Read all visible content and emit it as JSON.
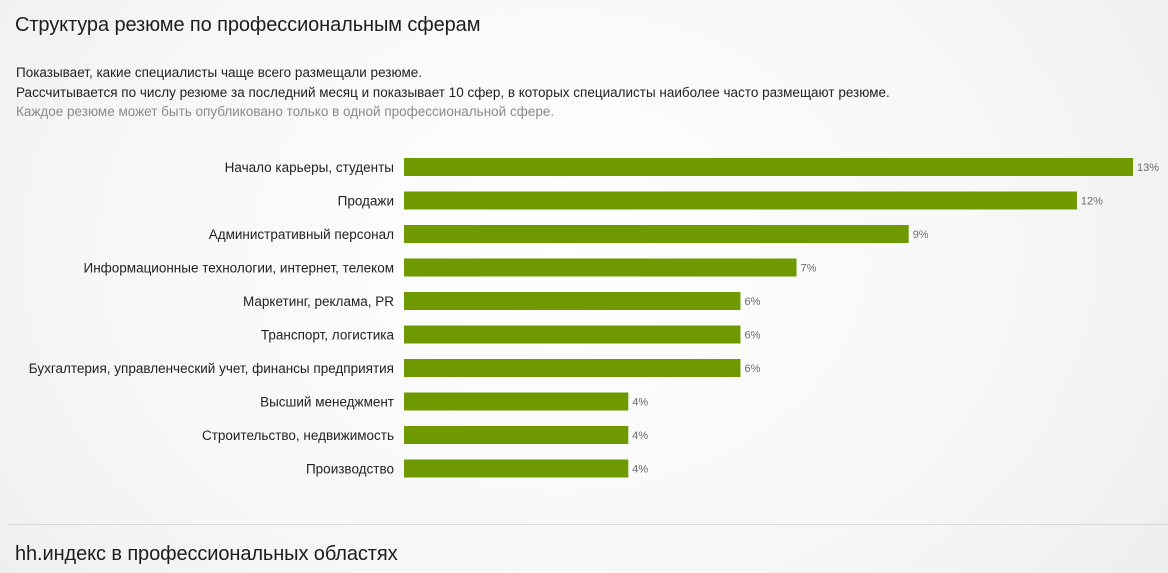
{
  "section1": {
    "title": "Структура резюме по профессиональным сферам",
    "description_lines": [
      "Показывает, какие специалисты чаще всего размещали резюме.",
      "Рассчитывается по числу резюме за последний месяц и показывает 10 сфер, в которых специалисты наиболее часто размещают резюме.",
      "Каждое резюме может быть опубликовано только в одной профессиональной сфере."
    ]
  },
  "section2": {
    "title": "hh.индекс в профессиональных областях"
  },
  "colors": {
    "bar": "#6e9a00"
  },
  "chart_data": {
    "type": "bar",
    "orientation": "horizontal",
    "categories": [
      "Начало карьеры, студенты",
      "Продажи",
      "Административный персонал",
      "Информационные технологии, интернет, телеком",
      "Маркетинг, реклама, PR",
      "Транспорт, логистика",
      "Бухгалтерия, управленческий учет, финансы предприятия",
      "Высший менеджмент",
      "Строительство, недвижимость",
      "Производство"
    ],
    "values": [
      13,
      12,
      9,
      7,
      6,
      6,
      6,
      4,
      4,
      4
    ],
    "value_labels": [
      "13%",
      "12%",
      "9%",
      "7%",
      "6%",
      "6%",
      "6%",
      "4%",
      "4%",
      "4%"
    ],
    "xlim": [
      0,
      13
    ],
    "grid": false
  }
}
